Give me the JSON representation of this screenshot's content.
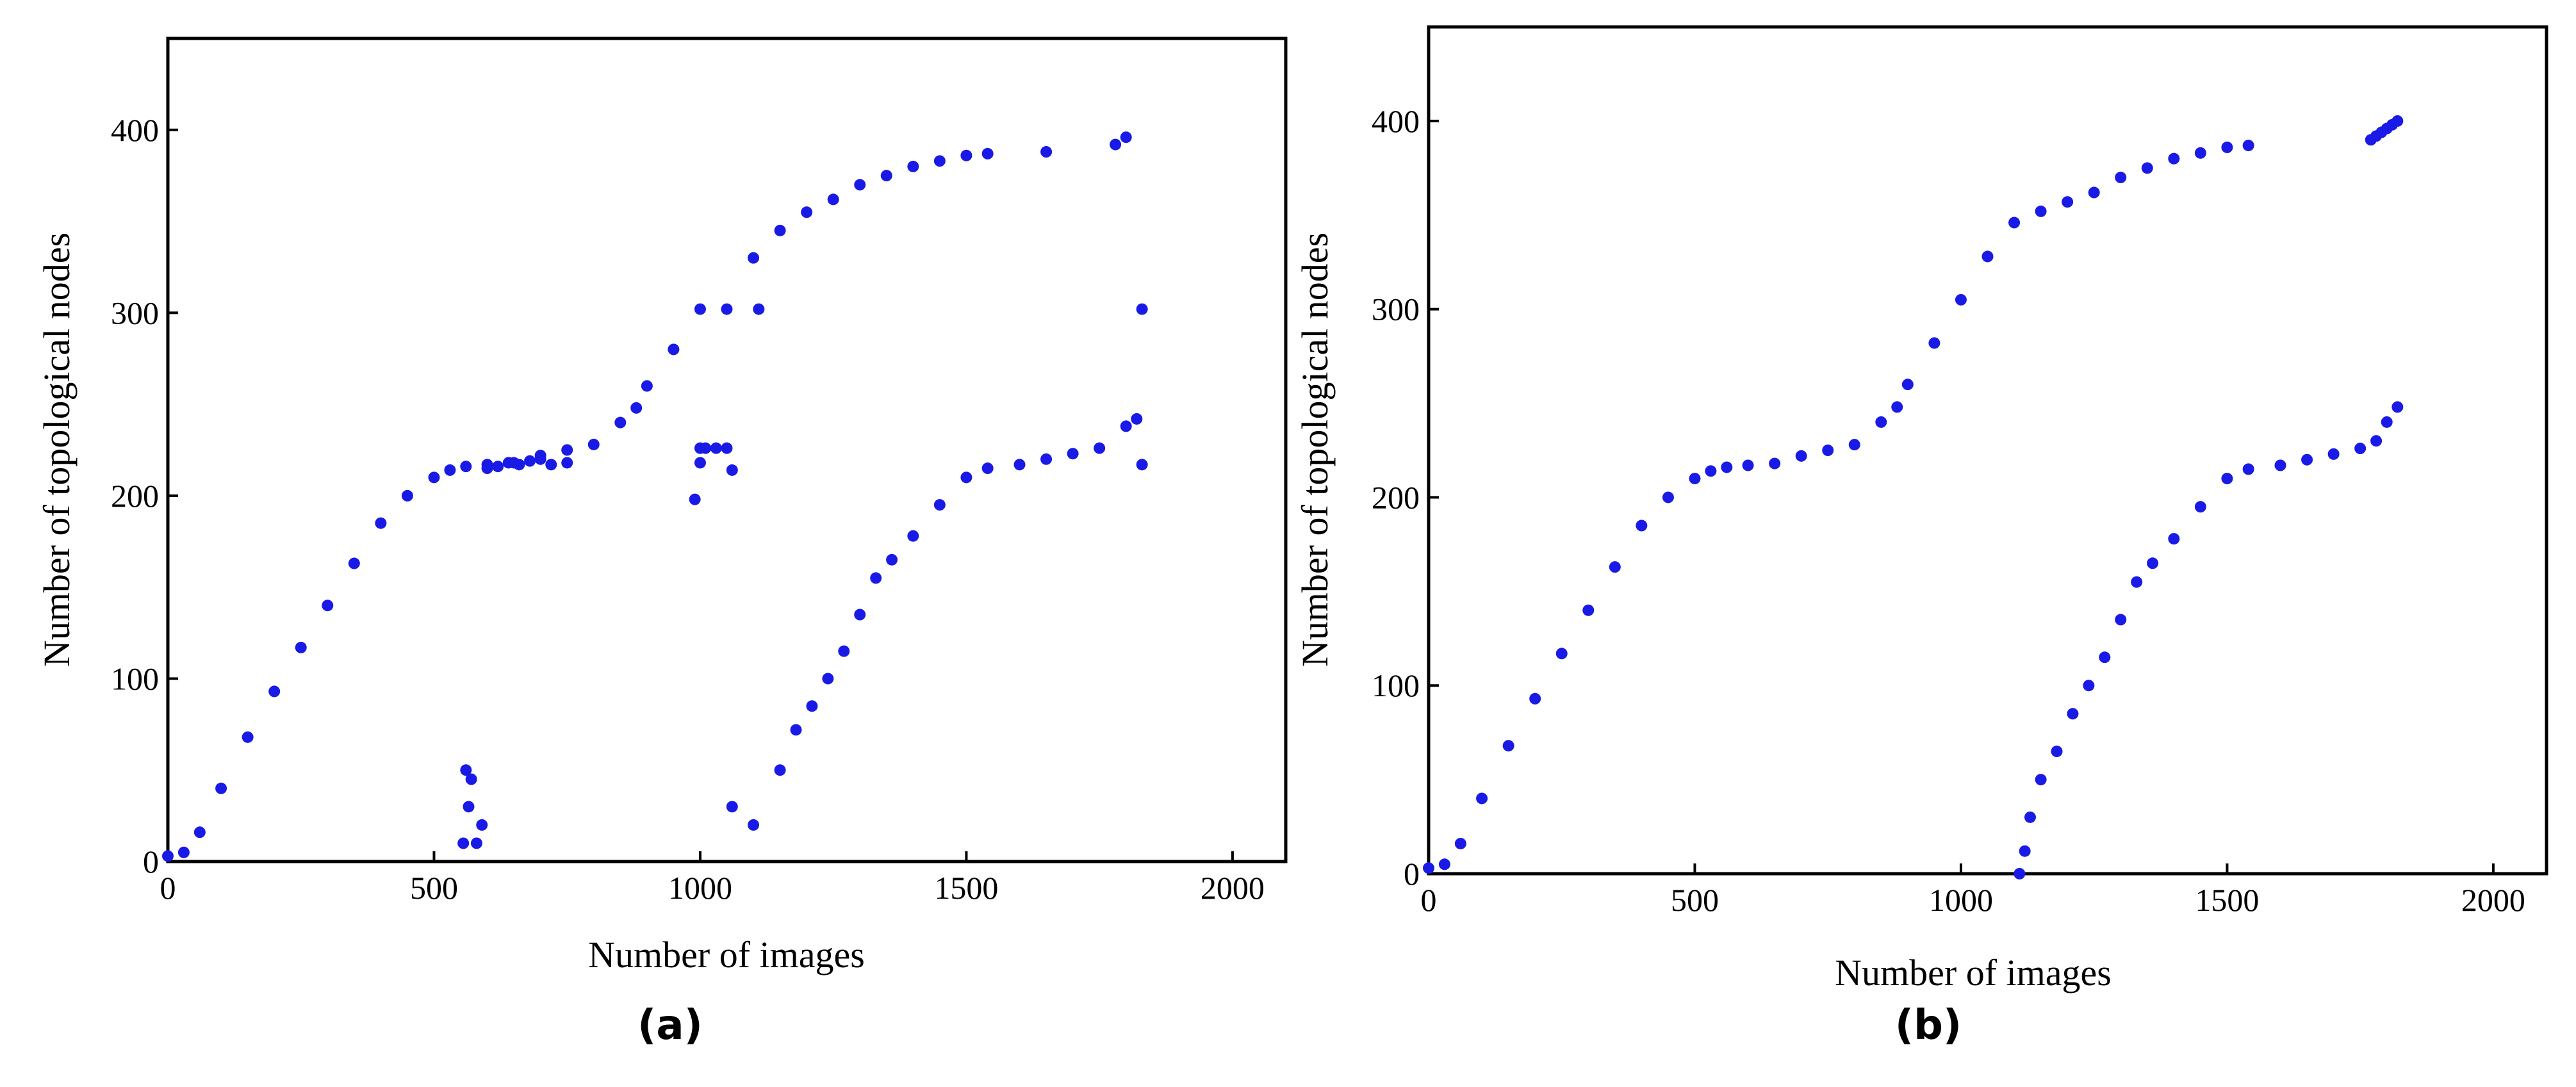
{
  "colors": {
    "points": "#1a1ae6",
    "axes": "#000000"
  },
  "chart_data": [
    {
      "type": "scatter",
      "panel_label": "(a)",
      "xlabel": "Number of images",
      "ylabel": "Number of topological nodes",
      "xlim": [
        0,
        2100
      ],
      "ylim": [
        0,
        450
      ],
      "xticks": [
        0,
        500,
        1000,
        1500,
        2000
      ],
      "yticks": [
        0,
        100,
        200,
        300,
        400
      ],
      "grid": false,
      "series": [
        {
          "values_x": [
            0,
            30,
            60,
            100,
            150,
            200,
            250,
            300,
            350,
            400,
            450,
            500,
            530,
            560,
            600,
            650,
            700,
            750,
            800,
            850,
            880,
            900,
            950,
            1000
          ],
          "values_y": [
            3,
            5,
            16,
            40,
            68,
            93,
            117,
            140,
            163,
            185,
            200,
            210,
            214,
            216,
            217,
            218,
            222,
            225,
            228,
            240,
            248,
            260,
            280,
            302
          ]
        },
        {
          "values_x": [
            1050,
            1100,
            1150,
            1200,
            1250,
            1300,
            1350,
            1400,
            1450,
            1500,
            1540,
            1650,
            1780,
            1800
          ],
          "values_y": [
            302,
            330,
            345,
            355,
            362,
            370,
            375,
            380,
            383,
            386,
            387,
            388,
            392,
            396
          ]
        },
        {
          "values_x": [
            1150,
            1180,
            1210,
            1240,
            1270,
            1300,
            1330,
            1360,
            1400,
            1450,
            1500,
            1540,
            1600,
            1650,
            1700,
            1750,
            1800,
            1820
          ],
          "values_y": [
            50,
            72,
            85,
            100,
            115,
            135,
            155,
            165,
            178,
            195,
            210,
            215,
            217,
            220,
            223,
            226,
            238,
            242
          ]
        },
        {
          "values_x": [
            555,
            560,
            565,
            570,
            580,
            590,
            600,
            620,
            640,
            660,
            680,
            700,
            720,
            750,
            990,
            1000,
            1000,
            1010,
            1030,
            1050,
            1060,
            1100,
            1060,
            1110,
            1830,
            1830
          ],
          "values_y": [
            10,
            50,
            30,
            45,
            10,
            20,
            215,
            216,
            218,
            217,
            219,
            220,
            217,
            218,
            198,
            218,
            226,
            226,
            226,
            226,
            214,
            20,
            30,
            302,
            217,
            302
          ]
        }
      ]
    },
    {
      "type": "scatter",
      "panel_label": "(b)",
      "xlabel": "Number of images",
      "ylabel": "Number of topological nodes",
      "xlim": [
        0,
        2100
      ],
      "ylim": [
        0,
        450
      ],
      "xticks": [
        0,
        500,
        1000,
        1500,
        2000
      ],
      "yticks": [
        0,
        100,
        200,
        300,
        400
      ],
      "grid": false,
      "series": [
        {
          "values_x": [
            0,
            30,
            60,
            100,
            150,
            200,
            250,
            300,
            350,
            400,
            450,
            500,
            530,
            560,
            600,
            650,
            700,
            750,
            800,
            850,
            880,
            900,
            950,
            1000,
            1050,
            1100,
            1150,
            1200,
            1250,
            1300,
            1350,
            1400,
            1450,
            1500,
            1540
          ],
          "values_y": [
            3,
            5,
            16,
            40,
            68,
            93,
            117,
            140,
            163,
            185,
            200,
            210,
            214,
            216,
            217,
            218,
            222,
            225,
            228,
            240,
            248,
            260,
            282,
            305,
            328,
            346,
            352,
            357,
            362,
            370,
            375,
            380,
            383,
            386,
            387
          ]
        },
        {
          "values_x": [
            1110,
            1120,
            1130,
            1150,
            1180,
            1210,
            1240,
            1270,
            1300,
            1330,
            1360,
            1400,
            1450,
            1500,
            1540,
            1600,
            1650,
            1700,
            1750,
            1780,
            1800,
            1820
          ],
          "values_y": [
            0,
            12,
            30,
            50,
            65,
            85,
            100,
            115,
            135,
            155,
            165,
            178,
            195,
            210,
            215,
            217,
            220,
            223,
            226,
            230,
            240,
            248
          ]
        },
        {
          "values_x": [
            1770,
            1780,
            1790,
            1800,
            1810,
            1820
          ],
          "values_y": [
            390,
            392,
            394,
            396,
            398,
            400
          ]
        }
      ]
    }
  ]
}
